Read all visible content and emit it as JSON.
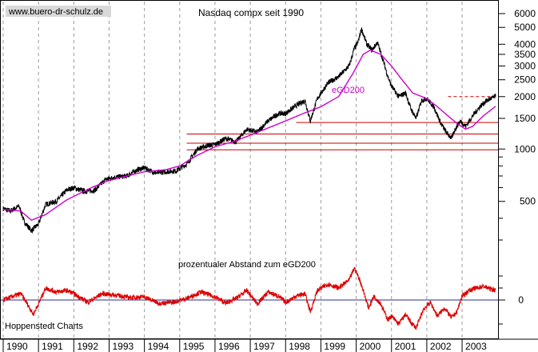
{
  "chart_data": [
    {
      "type": "line",
      "title": "Nasdaq compx seit 1990",
      "watermark": "www.buero-dr-schulz.de",
      "y_scale": "log",
      "y_ticks": [
        500,
        1000,
        1500,
        2000,
        2500,
        3000,
        3500,
        4000,
        5000,
        6000
      ],
      "x_ticks": [
        "1990",
        "1991",
        "1992",
        "1993",
        "1994",
        "1995",
        "1996",
        "1997",
        "1998",
        "1999",
        "2000",
        "2001",
        "2002",
        "2003"
      ],
      "ylim": [
        300,
        6600
      ],
      "xlim": [
        1990.0,
        2003.95
      ],
      "grid": "vertical dashed at year boundaries",
      "series": [
        {
          "name": "",
          "color": "#000000",
          "x": [
            1990.0,
            1990.2,
            1990.45,
            1990.6,
            1990.8,
            1991.0,
            1991.2,
            1991.5,
            1991.8,
            1992.0,
            1992.3,
            1992.6,
            1992.9,
            1993.2,
            1993.5,
            1993.8,
            1994.0,
            1994.3,
            1994.6,
            1994.9,
            1995.2,
            1995.5,
            1995.8,
            1996.0,
            1996.3,
            1996.6,
            1996.9,
            1997.2,
            1997.5,
            1997.8,
            1998.0,
            1998.3,
            1998.55,
            1998.7,
            1998.9,
            1999.2,
            1999.5,
            1999.8,
            1999.95,
            2000.05,
            2000.15,
            2000.3,
            2000.45,
            2000.6,
            2000.75,
            2000.9,
            2001.0,
            2001.2,
            2001.4,
            2001.55,
            2001.7,
            2001.85,
            2002.0,
            2002.2,
            2002.4,
            2002.55,
            2002.7,
            2002.8,
            2002.95,
            2003.1,
            2003.3,
            2003.5,
            2003.7,
            2003.95
          ],
          "y": [
            455,
            440,
            470,
            380,
            340,
            370,
            480,
            500,
            580,
            600,
            570,
            580,
            670,
            690,
            700,
            760,
            780,
            730,
            740,
            750,
            820,
            1000,
            1050,
            1060,
            1150,
            1100,
            1300,
            1250,
            1450,
            1600,
            1600,
            1780,
            1900,
            1450,
            1950,
            2400,
            2600,
            3000,
            3800,
            4100,
            4900,
            4000,
            3700,
            4100,
            3300,
            2600,
            2300,
            2000,
            2100,
            1700,
            1500,
            1900,
            1950,
            1750,
            1400,
            1250,
            1150,
            1300,
            1450,
            1350,
            1550,
            1750,
            1900,
            2010
          ]
        },
        {
          "name": "eGD200",
          "color": "#cc00cc",
          "x": [
            1990.0,
            1990.5,
            1990.8,
            1991.2,
            1991.8,
            1992.5,
            1993.0,
            1993.5,
            1994.0,
            1994.6,
            1995.0,
            1995.5,
            1996.0,
            1996.5,
            1997.0,
            1997.5,
            1998.0,
            1998.5,
            1999.0,
            1999.5,
            1999.9,
            2000.2,
            2000.4,
            2000.7,
            2001.0,
            2001.3,
            2001.6,
            2002.0,
            2002.3,
            2002.6,
            2002.9,
            2003.1,
            2003.3,
            2003.6,
            2003.95
          ],
          "y": [
            450,
            440,
            390,
            420,
            510,
            600,
            660,
            700,
            740,
            760,
            800,
            920,
            1030,
            1100,
            1200,
            1320,
            1450,
            1600,
            1750,
            2000,
            2700,
            3500,
            3700,
            3500,
            3000,
            2500,
            2100,
            1950,
            1750,
            1550,
            1380,
            1300,
            1350,
            1550,
            1760
          ]
        }
      ],
      "annotations": [
        {
          "text": "eGD200",
          "color": "#cc00cc"
        }
      ],
      "horizontal_lines": [
        {
          "y": 2000,
          "color": "#cc0000",
          "style": "dashed",
          "from": 2002.6
        },
        {
          "y": 1420,
          "color": "#cc0000",
          "style": "solid",
          "from": 1998.3
        },
        {
          "y": 1220,
          "color": "#cc0000",
          "style": "solid",
          "from": 1995.2
        },
        {
          "y": 1080,
          "color": "#cc0000",
          "style": "solid",
          "from": 1995.2
        },
        {
          "y": 990,
          "color": "#cc0000",
          "style": "solid",
          "from": 1995.2
        }
      ]
    },
    {
      "type": "line",
      "title": "prozentualer Abstand zum eGD200",
      "footer": "Hoppenstedt Charts",
      "y_ticks": [
        0
      ],
      "ylim": [
        -45,
        50
      ],
      "series": [
        {
          "name": "",
          "color": "#dd0000",
          "x": [
            1990.0,
            1990.3,
            1990.5,
            1990.7,
            1990.85,
            1991.0,
            1991.2,
            1991.5,
            1991.8,
            1992.0,
            1992.4,
            1992.8,
            1993.2,
            1993.6,
            1994.0,
            1994.4,
            1994.8,
            1995.2,
            1995.6,
            1996.0,
            1996.3,
            1996.6,
            1996.9,
            1997.2,
            1997.5,
            1997.8,
            1998.0,
            1998.3,
            1998.55,
            1998.7,
            1998.9,
            1999.2,
            1999.5,
            1999.8,
            1999.95,
            2000.1,
            2000.2,
            2000.35,
            2000.5,
            2000.7,
            2000.9,
            2001.0,
            2001.2,
            2001.4,
            2001.55,
            2001.7,
            2001.9,
            2002.1,
            2002.3,
            2002.5,
            2002.7,
            2002.85,
            2003.0,
            2003.2,
            2003.4,
            2003.6,
            2003.8,
            2003.95
          ],
          "y": [
            0,
            5,
            8,
            -6,
            -18,
            -5,
            15,
            10,
            12,
            8,
            -3,
            8,
            6,
            3,
            4,
            -4,
            -3,
            2,
            10,
            4,
            -4,
            2,
            12,
            -5,
            10,
            5,
            -3,
            5,
            8,
            -15,
            12,
            20,
            15,
            25,
            40,
            25,
            12,
            -10,
            5,
            -5,
            -25,
            -20,
            -30,
            -18,
            -28,
            -35,
            -12,
            -3,
            -20,
            -10,
            -22,
            -15,
            5,
            12,
            15,
            17,
            14,
            12
          ]
        }
      ]
    }
  ]
}
